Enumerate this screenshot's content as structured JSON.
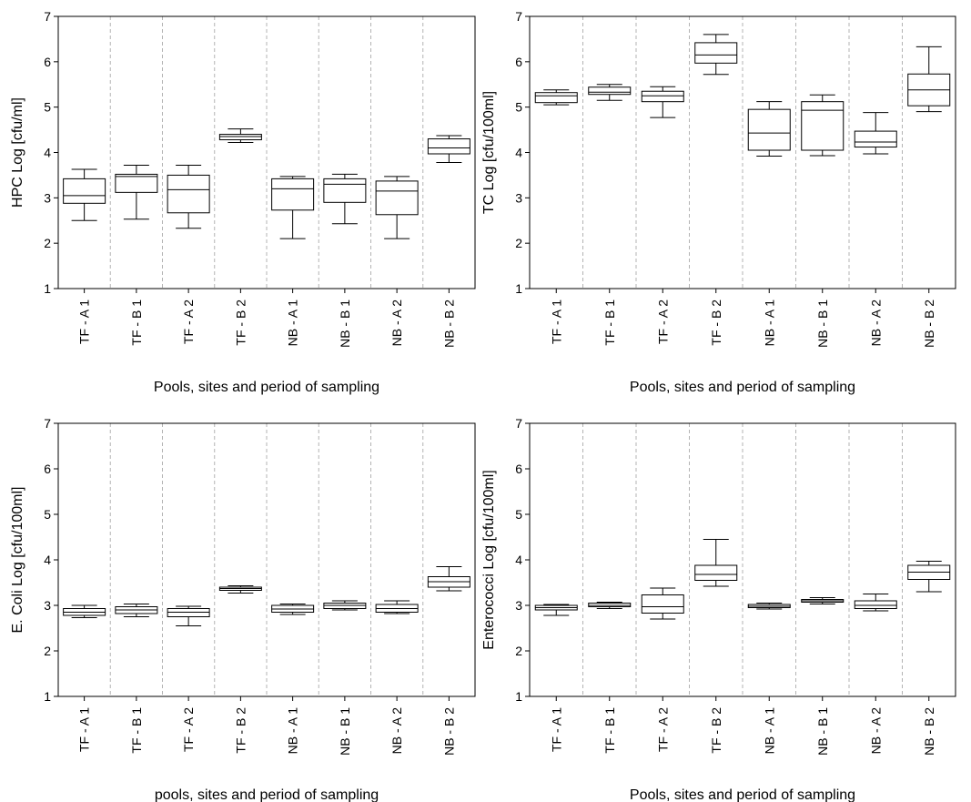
{
  "chart_data": [
    {
      "type": "boxplot",
      "ylabel": "HPC Log [cfu/ml]",
      "xlabel": "Pools, sites and period of sampling",
      "ylim": [
        1,
        7
      ],
      "yticks": [
        1,
        2,
        3,
        4,
        5,
        6,
        7
      ],
      "grid": "vertical dashed separators between categories",
      "categories": [
        "TF - A 1",
        "TF - B 1",
        "TF - A 2",
        "TF - B 2",
        "NB - A 1",
        "NB - B 1",
        "NB - A 2",
        "NB - B 2"
      ],
      "boxes": [
        {
          "min": 2.5,
          "q1": 2.88,
          "median": 3.05,
          "q3": 3.42,
          "max": 3.63
        },
        {
          "min": 2.53,
          "q1": 3.12,
          "median": 3.47,
          "q3": 3.52,
          "max": 3.72
        },
        {
          "min": 2.33,
          "q1": 2.67,
          "median": 3.18,
          "q3": 3.5,
          "max": 3.72
        },
        {
          "min": 4.22,
          "q1": 4.28,
          "median": 4.35,
          "q3": 4.4,
          "max": 4.52
        },
        {
          "min": 2.1,
          "q1": 2.73,
          "median": 3.2,
          "q3": 3.42,
          "max": 3.47
        },
        {
          "min": 2.43,
          "q1": 2.9,
          "median": 3.3,
          "q3": 3.42,
          "max": 3.52
        },
        {
          "min": 2.1,
          "q1": 2.63,
          "median": 3.15,
          "q3": 3.37,
          "max": 3.47
        },
        {
          "min": 3.78,
          "q1": 3.97,
          "median": 4.1,
          "q3": 4.3,
          "max": 4.37
        }
      ]
    },
    {
      "type": "boxplot",
      "ylabel": "TC Log [cfu/100ml]",
      "xlabel": "Pools, sites and period of sampling",
      "ylim": [
        1,
        7
      ],
      "yticks": [
        1,
        2,
        3,
        4,
        5,
        6,
        7
      ],
      "grid": "vertical dashed separators between categories",
      "categories": [
        "TF - A 1",
        "TF - B 1",
        "TF - A 2",
        "TF - B 2",
        "NB - A 1",
        "NB - B 1",
        "NB - A 2",
        "NB - B 2"
      ],
      "boxes": [
        {
          "min": 5.05,
          "q1": 5.1,
          "median": 5.25,
          "q3": 5.32,
          "max": 5.38
        },
        {
          "min": 5.15,
          "q1": 5.28,
          "median": 5.33,
          "q3": 5.44,
          "max": 5.5
        },
        {
          "min": 4.77,
          "q1": 5.12,
          "median": 5.25,
          "q3": 5.35,
          "max": 5.45
        },
        {
          "min": 5.72,
          "q1": 5.97,
          "median": 6.15,
          "q3": 6.42,
          "max": 6.6
        },
        {
          "min": 3.92,
          "q1": 4.05,
          "median": 4.43,
          "q3": 4.95,
          "max": 5.12
        },
        {
          "min": 3.93,
          "q1": 4.05,
          "median": 4.93,
          "q3": 5.12,
          "max": 5.27
        },
        {
          "min": 3.97,
          "q1": 4.12,
          "median": 4.23,
          "q3": 4.47,
          "max": 4.88
        },
        {
          "min": 4.9,
          "q1": 5.03,
          "median": 5.38,
          "q3": 5.73,
          "max": 6.33
        }
      ]
    },
    {
      "type": "boxplot",
      "ylabel": "E. Coli Log [cfu/100ml]",
      "xlabel": "pools, sites and period of sampling",
      "ylim": [
        1,
        7
      ],
      "yticks": [
        1,
        2,
        3,
        4,
        5,
        6,
        7
      ],
      "grid": "vertical dashed separators between categories",
      "categories": [
        "TF - A 1",
        "TF - B 1",
        "TF - A 2",
        "TF - B 2",
        "NB - A 1",
        "NB - B 1",
        "NB - A 2",
        "NB - B 2"
      ],
      "boxes": [
        {
          "min": 2.73,
          "q1": 2.78,
          "median": 2.85,
          "q3": 2.93,
          "max": 3.0
        },
        {
          "min": 2.75,
          "q1": 2.82,
          "median": 2.9,
          "q3": 2.97,
          "max": 3.03
        },
        {
          "min": 2.55,
          "q1": 2.75,
          "median": 2.85,
          "q3": 2.93,
          "max": 2.98
        },
        {
          "min": 3.27,
          "q1": 3.33,
          "median": 3.37,
          "q3": 3.4,
          "max": 3.43
        },
        {
          "min": 2.8,
          "q1": 2.85,
          "median": 2.92,
          "q3": 3.0,
          "max": 3.03
        },
        {
          "min": 2.9,
          "q1": 2.93,
          "median": 3.0,
          "q3": 3.05,
          "max": 3.1
        },
        {
          "min": 2.82,
          "q1": 2.85,
          "median": 2.93,
          "q3": 3.02,
          "max": 3.1
        },
        {
          "min": 3.32,
          "q1": 3.4,
          "median": 3.52,
          "q3": 3.63,
          "max": 3.85
        }
      ]
    },
    {
      "type": "boxplot",
      "ylabel": "Enterococci Log [cfu/100ml]",
      "xlabel": "Pools, sites and period of sampling",
      "ylim": [
        1,
        7
      ],
      "yticks": [
        1,
        2,
        3,
        4,
        5,
        6,
        7
      ],
      "grid": "vertical dashed separators between categories",
      "categories": [
        "TF - A 1",
        "TF - B 1",
        "TF - A 2",
        "TF - B 2",
        "NB - A 1",
        "NB - B 1",
        "NB - A 2",
        "NB - B 2"
      ],
      "boxes": [
        {
          "min": 2.78,
          "q1": 2.9,
          "median": 2.95,
          "q3": 3.0,
          "max": 3.02
        },
        {
          "min": 2.93,
          "q1": 2.97,
          "median": 3.0,
          "q3": 3.05,
          "max": 3.07
        },
        {
          "min": 2.7,
          "q1": 2.83,
          "median": 2.97,
          "q3": 3.23,
          "max": 3.38
        },
        {
          "min": 3.42,
          "q1": 3.55,
          "median": 3.68,
          "q3": 3.88,
          "max": 4.45
        },
        {
          "min": 2.92,
          "q1": 2.95,
          "median": 2.98,
          "q3": 3.02,
          "max": 3.05
        },
        {
          "min": 3.03,
          "q1": 3.07,
          "median": 3.1,
          "q3": 3.13,
          "max": 3.17
        },
        {
          "min": 2.88,
          "q1": 2.93,
          "median": 3.0,
          "q3": 3.1,
          "max": 3.25
        },
        {
          "min": 3.3,
          "q1": 3.57,
          "median": 3.73,
          "q3": 3.88,
          "max": 3.97
        }
      ]
    }
  ]
}
